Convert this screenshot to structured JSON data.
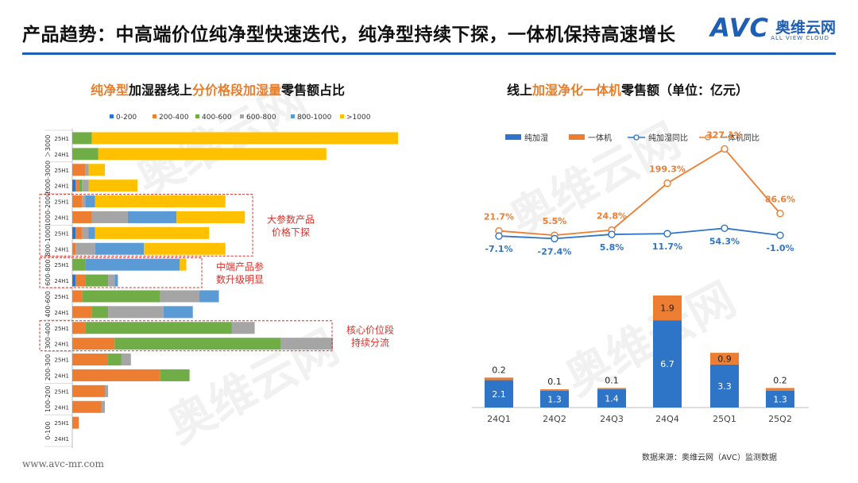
{
  "header": {
    "title": "产品趋势：中高端价位纯净型快速迭代，纯净型持续下探，一体机保持高速增长",
    "logo_mark": "AVC",
    "logo_cn": "奥维云网",
    "logo_en": "ALL VIEW CLOUD"
  },
  "left_panel": {
    "title_parts": [
      "纯净型",
      "加湿器线上",
      "分价格段加湿量",
      "零售额占比"
    ]
  },
  "right_panel": {
    "title_parts": [
      "线上",
      "加湿净化一体机",
      "零售额（单位：亿元）"
    ]
  },
  "footer": {
    "url": "www.avc-mr.com",
    "source": "数据来源：奥维云网（AVC）监测数据"
  },
  "watermark": {
    "text": "奥维云网"
  },
  "colors": {
    "brand": "#1e5fb4",
    "accent": "#e87d2a",
    "annotation": "#d9302b",
    "s1": "#2e75c7",
    "s2": "#ed7d31",
    "s3": "#70ad47",
    "s4": "#a5a5a5",
    "s5": "#5b9bd5",
    "s6": "#ffc000"
  },
  "chart_data": [
    {
      "type": "bar",
      "orientation": "horizontal",
      "stacked": true,
      "title": "纯净型加湿器线上分价格段加湿量零售额占比",
      "legend_position": "top",
      "series_names": [
        "0-200",
        "200-400",
        "400-600",
        "600-800",
        "800-1000",
        ">1000"
      ],
      "groups": [
        {
          "label": "＞3000",
          "rows": [
            {
              "year": "25H1",
              "values": [
                0,
                0,
                6,
                0,
                0,
                94
              ]
            },
            {
              "year": "24H1",
              "values": [
                0,
                0,
                8,
                0,
                0,
                70
              ]
            }
          ]
        },
        {
          "label": "2000-3000",
          "rows": [
            {
              "year": "25H1",
              "values": [
                0,
                4,
                0,
                1,
                0,
                5
              ]
            },
            {
              "year": "24H1",
              "values": [
                1,
                1,
                1,
                2,
                0,
                15
              ]
            }
          ]
        },
        {
          "label": "1000-2000",
          "rows": [
            {
              "year": "25H1",
              "values": [
                0,
                3,
                0,
                1,
                3,
                40
              ]
            },
            {
              "year": "24H1",
              "values": [
                0,
                6,
                0,
                11,
                15,
                21
              ]
            }
          ]
        },
        {
          "label": "800-1000",
          "rows": [
            {
              "year": "25H1",
              "values": [
                1,
                2,
                0,
                2,
                2,
                35
              ]
            },
            {
              "year": "24H1",
              "values": [
                0,
                1,
                0,
                6,
                15,
                25
              ]
            }
          ]
        },
        {
          "label": "600-800",
          "rows": [
            {
              "year": "25H1",
              "values": [
                0,
                0,
                4,
                0,
                29,
                2
              ]
            },
            {
              "year": "24H1",
              "values": [
                1,
                3,
                7,
                2,
                1,
                0
              ]
            }
          ]
        },
        {
          "label": "400-600",
          "rows": [
            {
              "year": "25H1",
              "values": [
                0,
                3,
                24,
                12,
                6,
                0
              ]
            },
            {
              "year": "24H1",
              "values": [
                0,
                6,
                5,
                17,
                9,
                0
              ]
            }
          ]
        },
        {
          "label": "300-400",
          "rows": [
            {
              "year": "25H1",
              "values": [
                0,
                4,
                45,
                7,
                0,
                0
              ]
            },
            {
              "year": "24H1",
              "values": [
                0,
                13,
                51,
                16,
                0,
                0
              ]
            }
          ]
        },
        {
          "label": "200-300",
          "rows": [
            {
              "year": "25H1",
              "values": [
                0,
                11,
                4,
                3,
                0,
                0
              ]
            },
            {
              "year": "24H1",
              "values": [
                0,
                27,
                9,
                0,
                0,
                0
              ]
            }
          ]
        },
        {
          "label": "100-200",
          "rows": [
            {
              "year": "25H1",
              "values": [
                0,
                10,
                0,
                1,
                0,
                0
              ]
            },
            {
              "year": "24H1",
              "values": [
                0,
                9,
                0,
                1,
                0,
                0
              ]
            }
          ]
        },
        {
          "label": "0-100",
          "rows": [
            {
              "year": "25H1",
              "values": [
                0,
                2,
                0,
                0,
                0,
                0
              ]
            },
            {
              "year": "24H1",
              "values": [
                0,
                0,
                0,
                0,
                0,
                0
              ]
            }
          ]
        }
      ],
      "annotations": [
        {
          "text_lines": [
            "大参数产品",
            "价格下探"
          ],
          "groups": [
            "1000-2000",
            "800-1000"
          ]
        },
        {
          "text_lines": [
            "中端产品参",
            "数升级明显"
          ],
          "groups": [
            "600-800"
          ]
        },
        {
          "text_lines": [
            "核心价位段",
            "持续分流"
          ],
          "groups": [
            "300-400"
          ]
        }
      ]
    },
    {
      "type": "bar+line",
      "title": "线上加湿净化一体机零售额（单位：亿元）",
      "legend_position": "top",
      "categories": [
        "24Q1",
        "24Q2",
        "24Q3",
        "24Q4",
        "25Q1",
        "25Q2"
      ],
      "bar_series": [
        {
          "name": "纯加湿",
          "values": [
            2.1,
            1.3,
            1.4,
            6.7,
            3.3,
            1.3
          ],
          "labels": [
            "2.1",
            "1.3",
            "1.4",
            "6.7",
            "3.3",
            "1.3"
          ]
        },
        {
          "name": "一体机",
          "values": [
            0.2,
            0.1,
            0.1,
            1.9,
            0.9,
            0.2
          ],
          "labels": [
            "0.2",
            "0.1",
            "0.1",
            "1.9",
            "0.9",
            "0.2"
          ]
        }
      ],
      "line_series": [
        {
          "name": "纯加湿同比",
          "values": [
            -7.1,
            -27.4,
            5.8,
            11.7,
            54.3,
            -1.0
          ],
          "labels": [
            "-7.1%",
            "-27.4%",
            "5.8%",
            "11.7%",
            "54.3%",
            "-1.0%"
          ]
        },
        {
          "name": "一体机同比",
          "values": [
            21.7,
            5.5,
            24.8,
            199.3,
            327.1,
            86.6
          ],
          "labels": [
            "21.7%",
            "5.5%",
            "24.8%",
            "199.3%",
            "327.1%",
            "86.6%"
          ]
        }
      ]
    }
  ]
}
